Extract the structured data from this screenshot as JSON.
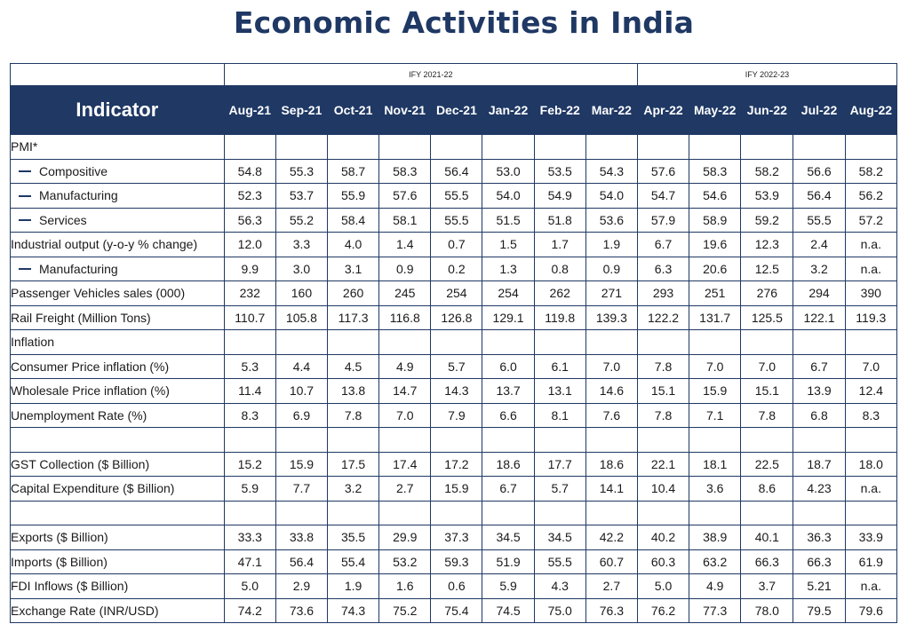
{
  "title": "Economic Activities in India",
  "chart_data": {
    "type": "table",
    "title": "Economic Activities in India",
    "fiscal_years": [
      {
        "label": "IFY 2021-22",
        "span": 8
      },
      {
        "label": "IFY 2022-23",
        "span": 5
      }
    ],
    "indicator_header": "Indicator",
    "columns": [
      "Aug-21",
      "Sep-21",
      "Oct-21",
      "Nov-21",
      "Dec-21",
      "Jan-22",
      "Feb-22",
      "Mar-22",
      "Apr-22",
      "May-22",
      "Jun-22",
      "Jul-22",
      "Aug-22"
    ],
    "rows": [
      {
        "label": "PMI*",
        "sub": false,
        "values": [
          "",
          "",
          "",
          "",
          "",
          "",
          "",
          "",
          "",
          "",
          "",
          "",
          ""
        ]
      },
      {
        "label": "Compositive",
        "sub": true,
        "values": [
          "54.8",
          "55.3",
          "58.7",
          "58.3",
          "56.4",
          "53.0",
          "53.5",
          "54.3",
          "57.6",
          "58.3",
          "58.2",
          "56.6",
          "58.2"
        ]
      },
      {
        "label": "Manufacturing",
        "sub": true,
        "values": [
          "52.3",
          "53.7",
          "55.9",
          "57.6",
          "55.5",
          "54.0",
          "54.9",
          "54.0",
          "54.7",
          "54.6",
          "53.9",
          "56.4",
          "56.2"
        ]
      },
      {
        "label": "Services",
        "sub": true,
        "values": [
          "56.3",
          "55.2",
          "58.4",
          "58.1",
          "55.5",
          "51.5",
          "51.8",
          "53.6",
          "57.9",
          "58.9",
          "59.2",
          "55.5",
          "57.2"
        ]
      },
      {
        "label": "Industrial output (y-o-y % change)",
        "sub": false,
        "values": [
          "12.0",
          "3.3",
          "4.0",
          "1.4",
          "0.7",
          "1.5",
          "1.7",
          "1.9",
          "6.7",
          "19.6",
          "12.3",
          "2.4",
          "n.a."
        ]
      },
      {
        "label": "Manufacturing",
        "sub": true,
        "values": [
          "9.9",
          "3.0",
          "3.1",
          "0.9",
          "0.2",
          "1.3",
          "0.8",
          "0.9",
          "6.3",
          "20.6",
          "12.5",
          "3.2",
          "n.a."
        ]
      },
      {
        "label": "Passenger Vehicles sales (000)",
        "sub": false,
        "values": [
          "232",
          "160",
          "260",
          "245",
          "254",
          "254",
          "262",
          "271",
          "293",
          "251",
          "276",
          "294",
          "390"
        ]
      },
      {
        "label": "Rail Freight (Million Tons)",
        "sub": false,
        "values": [
          "110.7",
          "105.8",
          "117.3",
          "116.8",
          "126.8",
          "129.1",
          "119.8",
          "139.3",
          "122.2",
          "131.7",
          "125.5",
          "122.1",
          "119.3"
        ]
      },
      {
        "label": "Inflation",
        "sub": false,
        "values": [
          "",
          "",
          "",
          "",
          "",
          "",
          "",
          "",
          "",
          "",
          "",
          "",
          ""
        ]
      },
      {
        "label": "Consumer Price inflation (%)",
        "sub": false,
        "values": [
          "5.3",
          "4.4",
          "4.5",
          "4.9",
          "5.7",
          "6.0",
          "6.1",
          "7.0",
          "7.8",
          "7.0",
          "7.0",
          "6.7",
          "7.0"
        ]
      },
      {
        "label": "Wholesale Price inflation (%)",
        "sub": false,
        "values": [
          "11.4",
          "10.7",
          "13.8",
          "14.7",
          "14.3",
          "13.7",
          "13.1",
          "14.6",
          "15.1",
          "15.9",
          "15.1",
          "13.9",
          "12.4"
        ]
      },
      {
        "label": "Unemployment Rate (%)",
        "sub": false,
        "values": [
          "8.3",
          "6.9",
          "7.8",
          "7.0",
          "7.9",
          "6.6",
          "8.1",
          "7.6",
          "7.8",
          "7.1",
          "7.8",
          "6.8",
          "8.3"
        ]
      },
      {
        "label": "",
        "sub": false,
        "values": [
          "",
          "",
          "",
          "",
          "",
          "",
          "",
          "",
          "",
          "",
          "",
          "",
          ""
        ]
      },
      {
        "label": "GST Collection ($ Billion)",
        "sub": false,
        "values": [
          "15.2",
          "15.9",
          "17.5",
          "17.4",
          "17.2",
          "18.6",
          "17.7",
          "18.6",
          "22.1",
          "18.1",
          "22.5",
          "18.7",
          "18.0"
        ]
      },
      {
        "label": "Capital Expenditure ($ Billion)",
        "sub": false,
        "values": [
          "5.9",
          "7.7",
          "3.2",
          "2.7",
          "15.9",
          "6.7",
          "5.7",
          "14.1",
          "10.4",
          "3.6",
          "8.6",
          "4.23",
          "n.a."
        ]
      },
      {
        "label": "",
        "sub": false,
        "values": [
          "",
          "",
          "",
          "",
          "",
          "",
          "",
          "",
          "",
          "",
          "",
          "",
          ""
        ]
      },
      {
        "label": "Exports ($ Billion)",
        "sub": false,
        "values": [
          "33.3",
          "33.8",
          "35.5",
          "29.9",
          "37.3",
          "34.5",
          "34.5",
          "42.2",
          "40.2",
          "38.9",
          "40.1",
          "36.3",
          "33.9"
        ]
      },
      {
        "label": "Imports ($ Billion)",
        "sub": false,
        "values": [
          "47.1",
          "56.4",
          "55.4",
          "53.2",
          "59.3",
          "51.9",
          "55.5",
          "60.7",
          "60.3",
          "63.2",
          "66.3",
          "66.3",
          "61.9"
        ]
      },
      {
        "label": "FDI Inflows ($ Billion)",
        "sub": false,
        "values": [
          "5.0",
          "2.9",
          "1.9",
          "1.6",
          "0.6",
          "5.9",
          "4.3",
          "2.7",
          "5.0",
          "4.9",
          "3.7",
          "5.21",
          "n.a."
        ]
      },
      {
        "label": "Exchange Rate (INR/USD)",
        "sub": false,
        "values": [
          "74.2",
          "73.6",
          "74.3",
          "75.2",
          "75.4",
          "74.5",
          "75.0",
          "76.3",
          "76.2",
          "77.3",
          "78.0",
          "79.5",
          "79.6"
        ]
      }
    ]
  }
}
